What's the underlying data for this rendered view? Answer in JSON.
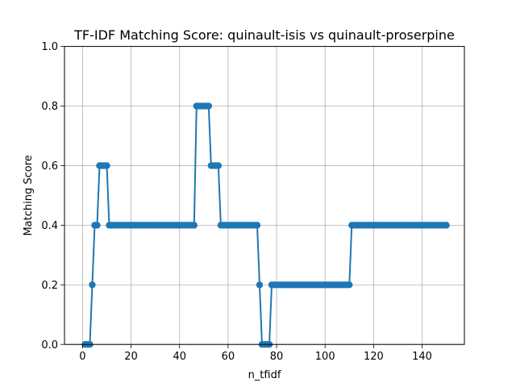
{
  "chart_data": {
    "type": "line",
    "title": "TF-IDF Matching Score: quinault-isis vs quinault-proserpine",
    "xlabel": "n_tfidf",
    "ylabel": "Matching Score",
    "xlim": [
      -7.45,
      157.45
    ],
    "ylim": [
      0.0,
      1.0
    ],
    "xticks": [
      0,
      20,
      40,
      60,
      80,
      100,
      120,
      140
    ],
    "yticks": [
      0.0,
      0.2,
      0.4,
      0.6,
      0.8,
      1.0
    ],
    "xtick_labels": [
      "0",
      "20",
      "40",
      "60",
      "80",
      "100",
      "120",
      "140"
    ],
    "ytick_labels": [
      "0.0",
      "0.2",
      "0.4",
      "0.6",
      "0.8",
      "1.0"
    ],
    "grid": true,
    "marker": "circle",
    "color": "#1f77b4",
    "series": [
      {
        "x": [
          1,
          2,
          3,
          4,
          5,
          6,
          7,
          8,
          9,
          10,
          11,
          12,
          13,
          14,
          15,
          16,
          17,
          18,
          19,
          20,
          21,
          22,
          23,
          24,
          25,
          26,
          27,
          28,
          29,
          30,
          31,
          32,
          33,
          34,
          35,
          36,
          37,
          38,
          39,
          40,
          41,
          42,
          43,
          44,
          45,
          46,
          47,
          48,
          49,
          50,
          51,
          52,
          53,
          54,
          55,
          56,
          57,
          58,
          59,
          60,
          61,
          62,
          63,
          64,
          65,
          66,
          67,
          68,
          69,
          70,
          71,
          72,
          73,
          74,
          75,
          76,
          77,
          78,
          79,
          80,
          81,
          82,
          83,
          84,
          85,
          86,
          87,
          88,
          89,
          90,
          91,
          92,
          93,
          94,
          95,
          96,
          97,
          98,
          99,
          100,
          101,
          102,
          103,
          104,
          105,
          106,
          107,
          108,
          109,
          110,
          111,
          112,
          113,
          114,
          115,
          116,
          117,
          118,
          119,
          120,
          121,
          122,
          123,
          124,
          125,
          126,
          127,
          128,
          129,
          130,
          131,
          132,
          133,
          134,
          135,
          136,
          137,
          138,
          139,
          140,
          141,
          142,
          143,
          144,
          145,
          146,
          147,
          148,
          149,
          150
        ],
        "values": [
          0.0,
          0.0,
          0.0,
          0.2,
          0.4,
          0.4,
          0.6,
          0.6,
          0.6,
          0.6,
          0.4,
          0.4,
          0.4,
          0.4,
          0.4,
          0.4,
          0.4,
          0.4,
          0.4,
          0.4,
          0.4,
          0.4,
          0.4,
          0.4,
          0.4,
          0.4,
          0.4,
          0.4,
          0.4,
          0.4,
          0.4,
          0.4,
          0.4,
          0.4,
          0.4,
          0.4,
          0.4,
          0.4,
          0.4,
          0.4,
          0.4,
          0.4,
          0.4,
          0.4,
          0.4,
          0.4,
          0.8,
          0.8,
          0.8,
          0.8,
          0.8,
          0.8,
          0.6,
          0.6,
          0.6,
          0.6,
          0.4,
          0.4,
          0.4,
          0.4,
          0.4,
          0.4,
          0.4,
          0.4,
          0.4,
          0.4,
          0.4,
          0.4,
          0.4,
          0.4,
          0.4,
          0.4,
          0.2,
          0.0,
          0.0,
          0.0,
          0.0,
          0.2,
          0.2,
          0.2,
          0.2,
          0.2,
          0.2,
          0.2,
          0.2,
          0.2,
          0.2,
          0.2,
          0.2,
          0.2,
          0.2,
          0.2,
          0.2,
          0.2,
          0.2,
          0.2,
          0.2,
          0.2,
          0.2,
          0.2,
          0.2,
          0.2,
          0.2,
          0.2,
          0.2,
          0.2,
          0.2,
          0.2,
          0.2,
          0.2,
          0.4,
          0.4,
          0.4,
          0.4,
          0.4,
          0.4,
          0.4,
          0.4,
          0.4,
          0.4,
          0.4,
          0.4,
          0.4,
          0.4,
          0.4,
          0.4,
          0.4,
          0.4,
          0.4,
          0.4,
          0.4,
          0.4,
          0.4,
          0.4,
          0.4,
          0.4,
          0.4,
          0.4,
          0.4,
          0.4,
          0.4,
          0.4,
          0.4,
          0.4,
          0.4,
          0.4,
          0.4,
          0.4,
          0.4,
          0.4
        ]
      }
    ]
  }
}
